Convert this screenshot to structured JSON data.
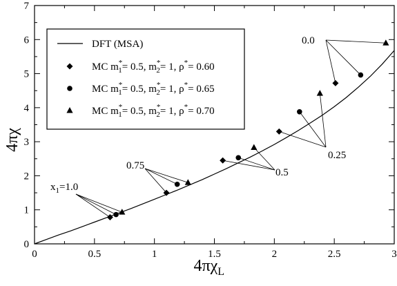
{
  "chart_data": {
    "type": "scatter",
    "xlabel": "4πχ",
    "xlabel_sub": "L",
    "ylabel": "4πχ",
    "xlim": [
      0,
      3
    ],
    "ylim": [
      0,
      7
    ],
    "xticks": [
      0,
      0.5,
      1,
      1.5,
      2,
      2.5,
      3
    ],
    "xtick_labels": [
      "0",
      "0.5",
      "1",
      "1.5",
      "2",
      "2.5",
      "3"
    ],
    "yticks": [
      0,
      1,
      2,
      3,
      4,
      5,
      6,
      7
    ],
    "ytick_labels": [
      "0",
      "1",
      "2",
      "3",
      "4",
      "5",
      "6",
      "7"
    ],
    "grid": false,
    "legend_position": "top-left",
    "series": [
      {
        "name": "DFT (MSA)",
        "marker": "line",
        "x": [
          0,
          0.1,
          0.2,
          0.3,
          0.4,
          0.5,
          0.6,
          0.7,
          0.8,
          0.9,
          1.0,
          1.1,
          1.2,
          1.3,
          1.4,
          1.5,
          1.6,
          1.7,
          1.8,
          1.9,
          2.0,
          2.1,
          2.2,
          2.3,
          2.4,
          2.5,
          2.6,
          2.7,
          2.8,
          2.9,
          3.0
        ],
        "y": [
          0,
          0.13,
          0.26,
          0.38,
          0.51,
          0.64,
          0.77,
          0.9,
          1.03,
          1.17,
          1.31,
          1.45,
          1.59,
          1.74,
          1.89,
          2.05,
          2.21,
          2.38,
          2.55,
          2.73,
          2.92,
          3.12,
          3.33,
          3.55,
          3.78,
          4.03,
          4.3,
          4.6,
          4.92,
          5.28,
          5.68
        ]
      },
      {
        "name_parts": {
          "prefix": "MC  m",
          "s1": "1",
          "mid": "= 0.5, m",
          "s2": "2",
          "mid2": "= 1, ρ",
          "end": "= 0.60"
        },
        "marker": "diamond",
        "x": [
          0.63,
          1.1,
          1.57,
          2.04,
          2.51
        ],
        "y": [
          0.78,
          1.5,
          2.45,
          3.3,
          4.72
        ]
      },
      {
        "name_parts": {
          "prefix": "MC  m",
          "s1": "1",
          "mid": "= 0.5, m",
          "s2": "2",
          "mid2": "= 1, ρ",
          "end": "= 0.65"
        },
        "marker": "circle",
        "x": [
          0.68,
          1.19,
          1.7,
          2.21,
          2.72
        ],
        "y": [
          0.86,
          1.75,
          2.53,
          3.88,
          4.96
        ]
      },
      {
        "name_parts": {
          "prefix": "MC  m",
          "s1": "1",
          "mid": "= 0.5, m",
          "s2": "2",
          "mid2": "= 1, ρ",
          "end": "= 0.70"
        },
        "marker": "triangle",
        "x": [
          0.73,
          1.28,
          1.83,
          2.38,
          2.93
        ],
        "y": [
          0.93,
          1.8,
          2.83,
          4.42,
          5.9
        ]
      }
    ],
    "annotations": [
      {
        "label": "x",
        "label_sub": "1",
        "label_tail": "=1.0",
        "targets": [
          [
            0.63,
            0.78
          ],
          [
            0.68,
            0.86
          ],
          [
            0.73,
            0.93
          ]
        ]
      },
      {
        "label": "0.75",
        "targets": [
          [
            1.1,
            1.5
          ],
          [
            1.19,
            1.75
          ],
          [
            1.28,
            1.8
          ]
        ]
      },
      {
        "label": "0.5",
        "targets": [
          [
            1.57,
            2.45
          ],
          [
            1.7,
            2.53
          ],
          [
            1.83,
            2.83
          ]
        ]
      },
      {
        "label": "0.25",
        "targets": [
          [
            2.04,
            3.3
          ],
          [
            2.21,
            3.88
          ],
          [
            2.38,
            4.42
          ]
        ]
      },
      {
        "label": "0.0",
        "targets": [
          [
            2.51,
            4.72
          ],
          [
            2.72,
            4.96
          ],
          [
            2.93,
            5.9
          ]
        ]
      }
    ]
  }
}
